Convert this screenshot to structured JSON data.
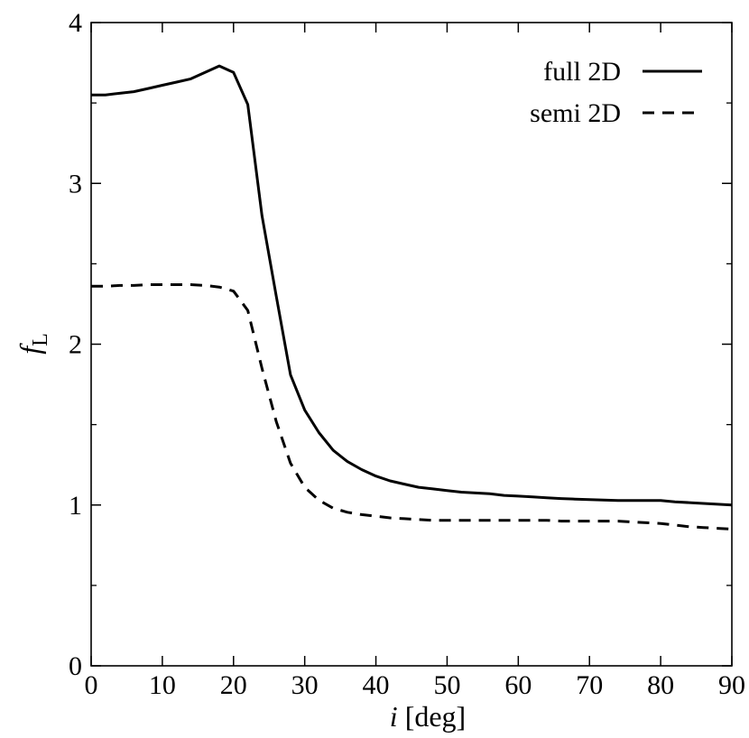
{
  "chart_data": {
    "type": "line",
    "xlabel": {
      "symbol": "i",
      "unit": "[deg]"
    },
    "ylabel": {
      "symbol": "f",
      "subscript": "L"
    },
    "xlim": [
      0,
      90
    ],
    "ylim": [
      0,
      4
    ],
    "x_major_ticks": [
      0,
      10,
      20,
      30,
      40,
      50,
      60,
      70,
      80,
      90
    ],
    "y_major_ticks": [
      0,
      1,
      2,
      3,
      4
    ],
    "y_minor_ticks": [
      0.5,
      1.5,
      2.5,
      3.5
    ],
    "grid": false,
    "legend_position": "top-right",
    "series": [
      {
        "name": "full 2D",
        "style": "solid",
        "color": "#000000",
        "x": [
          0,
          2,
          4,
          6,
          8,
          10,
          12,
          14,
          16,
          18,
          20,
          22,
          24,
          26,
          28,
          30,
          32,
          34,
          36,
          38,
          40,
          42,
          44,
          46,
          48,
          50,
          52,
          54,
          56,
          58,
          60,
          62,
          64,
          66,
          68,
          70,
          72,
          74,
          76,
          78,
          80,
          82,
          84,
          86,
          88,
          90
        ],
        "y": [
          3.55,
          3.55,
          3.56,
          3.57,
          3.59,
          3.61,
          3.63,
          3.65,
          3.69,
          3.73,
          3.69,
          3.49,
          2.8,
          2.3,
          1.81,
          1.59,
          1.45,
          1.34,
          1.27,
          1.22,
          1.18,
          1.15,
          1.13,
          1.11,
          1.1,
          1.09,
          1.08,
          1.075,
          1.07,
          1.06,
          1.055,
          1.05,
          1.045,
          1.04,
          1.037,
          1.034,
          1.031,
          1.028,
          1.028,
          1.028,
          1.028,
          1.02,
          1.015,
          1.01,
          1.005,
          1.0
        ]
      },
      {
        "name": "semi 2D",
        "style": "dashed",
        "color": "#000000",
        "x": [
          0,
          2,
          4,
          6,
          8,
          10,
          12,
          14,
          16,
          18,
          20,
          22,
          24,
          26,
          28,
          30,
          32,
          34,
          36,
          38,
          40,
          42,
          44,
          46,
          48,
          50,
          52,
          54,
          56,
          58,
          60,
          62,
          64,
          66,
          68,
          70,
          72,
          74,
          76,
          78,
          80,
          82,
          84,
          86,
          88,
          90
        ],
        "y": [
          2.36,
          2.36,
          2.365,
          2.365,
          2.37,
          2.37,
          2.37,
          2.37,
          2.365,
          2.355,
          2.33,
          2.21,
          1.85,
          1.52,
          1.26,
          1.11,
          1.03,
          0.98,
          0.955,
          0.94,
          0.93,
          0.92,
          0.915,
          0.91,
          0.905,
          0.905,
          0.905,
          0.905,
          0.905,
          0.905,
          0.905,
          0.905,
          0.905,
          0.9,
          0.9,
          0.9,
          0.9,
          0.9,
          0.895,
          0.89,
          0.885,
          0.875,
          0.865,
          0.86,
          0.855,
          0.85
        ]
      }
    ]
  }
}
